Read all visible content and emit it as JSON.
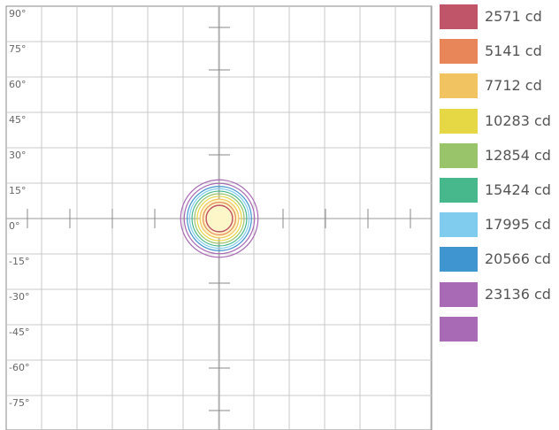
{
  "chart_data": {
    "type": "isocandela-contour",
    "title": "",
    "xlabel": "",
    "ylabel": "",
    "ylim": [
      -90,
      90
    ],
    "xlim": [
      -180,
      180
    ],
    "y_tick_labels": [
      "90°",
      "75°",
      "60°",
      "45°",
      "30°",
      "15°",
      "0°",
      "-15°",
      "-30°",
      "-45°",
      "-60°",
      "-75°"
    ],
    "y_tick_values": [
      90,
      75,
      60,
      45,
      30,
      15,
      0,
      -15,
      -30,
      -45,
      -60,
      -75
    ],
    "grid": true,
    "legend_placement": "right",
    "series": [
      {
        "name": "2571 cd",
        "color": "#c0556a",
        "radius_deg": 5.6
      },
      {
        "name": "5141 cd",
        "color": "#e8865a",
        "radius_deg": 6.9
      },
      {
        "name": "7712 cd",
        "color": "#f2c461",
        "radius_deg": 8.2
      },
      {
        "name": "10283 cd",
        "color": "#e6d844",
        "radius_deg": 9.4
      },
      {
        "name": "12854 cd",
        "color": "#9ac46a",
        "radius_deg": 10.5
      },
      {
        "name": "15424 cd",
        "color": "#46b88c",
        "radius_deg": 11.6
      },
      {
        "name": "17995 cd",
        "color": "#80ccee",
        "radius_deg": 12.6
      },
      {
        "name": "20566 cd",
        "color": "#3f95cf",
        "radius_deg": 13.6
      },
      {
        "name": "23136 cd",
        "color": "#a86ab4",
        "radius_deg": 14.9
      }
    ],
    "extra_swatch": {
      "color": "#a86ab4",
      "radius_deg": 16.4
    }
  }
}
